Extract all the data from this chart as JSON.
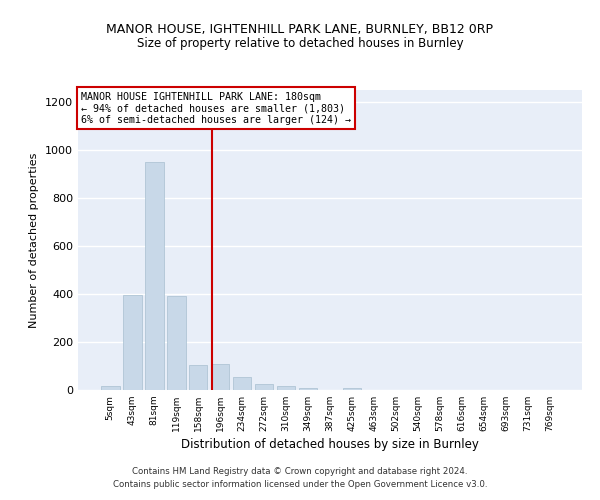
{
  "title": "MANOR HOUSE, IGHTENHILL PARK LANE, BURNLEY, BB12 0RP",
  "subtitle": "Size of property relative to detached houses in Burnley",
  "xlabel": "Distribution of detached houses by size in Burnley",
  "ylabel": "Number of detached properties",
  "bar_color": "#c8d8e8",
  "bar_edge_color": "#a8bfd0",
  "background_color": "#e8eef8",
  "grid_color": "#ffffff",
  "categories": [
    "5sqm",
    "43sqm",
    "81sqm",
    "119sqm",
    "158sqm",
    "196sqm",
    "234sqm",
    "272sqm",
    "310sqm",
    "349sqm",
    "387sqm",
    "425sqm",
    "463sqm",
    "502sqm",
    "540sqm",
    "578sqm",
    "616sqm",
    "654sqm",
    "693sqm",
    "731sqm",
    "769sqm"
  ],
  "values": [
    15,
    395,
    950,
    390,
    105,
    110,
    55,
    25,
    15,
    10,
    0,
    10,
    0,
    0,
    0,
    0,
    0,
    0,
    0,
    0,
    0
  ],
  "ylim": [
    0,
    1250
  ],
  "yticks": [
    0,
    200,
    400,
    600,
    800,
    1000,
    1200
  ],
  "vline_x": 4.65,
  "annotation_text": "MANOR HOUSE IGHTENHILL PARK LANE: 180sqm\n← 94% of detached houses are smaller (1,803)\n6% of semi-detached houses are larger (124) →",
  "annotation_box_color": "#ffffff",
  "annotation_border_color": "#cc0000",
  "vline_color": "#cc0000",
  "footnote1": "Contains HM Land Registry data © Crown copyright and database right 2024.",
  "footnote2": "Contains public sector information licensed under the Open Government Licence v3.0."
}
